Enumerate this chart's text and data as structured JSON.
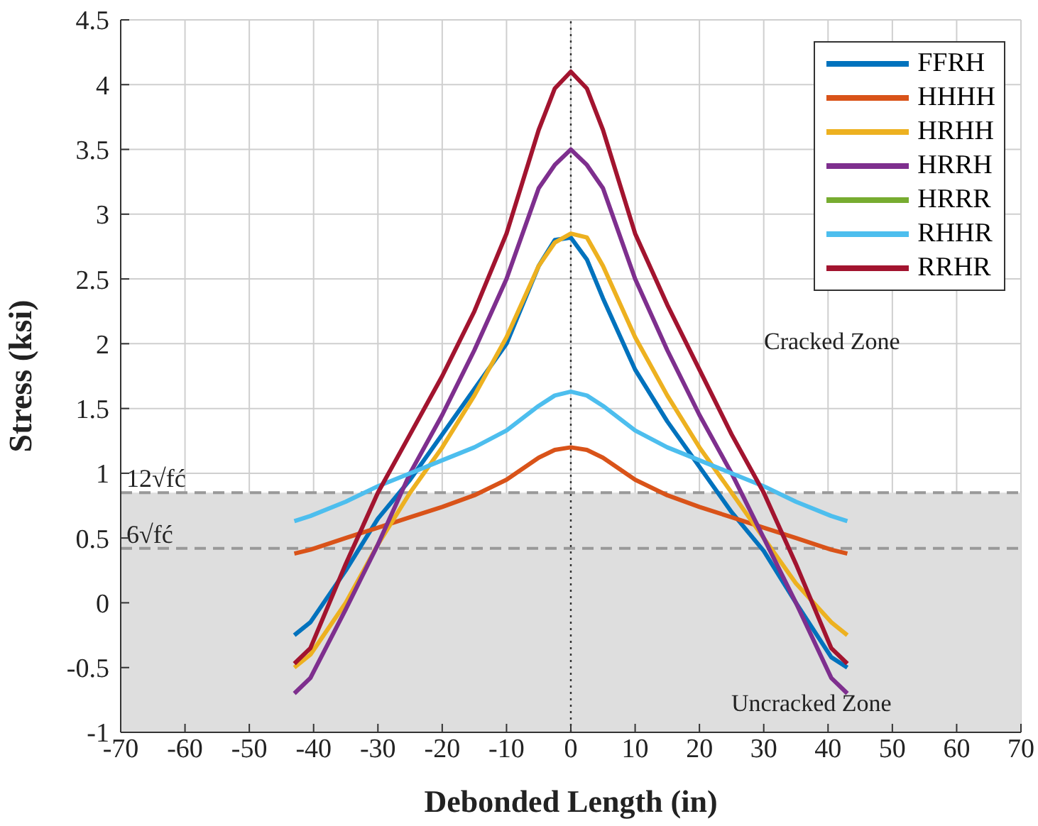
{
  "chart_data": {
    "type": "line",
    "xlabel": "Debonded Length (in)",
    "ylabel": "Stress (ksi)",
    "x": [
      -43,
      -40.5,
      -35,
      -30,
      -25,
      -20,
      -15,
      -10,
      -5,
      -2.5,
      0,
      2.5,
      5,
      10,
      15,
      20,
      25,
      30,
      35,
      40.5,
      43
    ],
    "series": [
      {
        "name": "FFRH",
        "color": "#0072bd",
        "values": [
          -0.25,
          -0.15,
          0.25,
          0.65,
          0.95,
          1.3,
          1.65,
          2.0,
          2.6,
          2.8,
          2.82,
          2.65,
          2.35,
          1.8,
          1.4,
          1.05,
          0.7,
          0.4,
          0.0,
          -0.42,
          -0.5
        ]
      },
      {
        "name": "HHHH",
        "color": "#d95319",
        "values": [
          0.38,
          0.41,
          0.5,
          0.58,
          0.66,
          0.74,
          0.83,
          0.95,
          1.12,
          1.18,
          1.2,
          1.18,
          1.12,
          0.95,
          0.83,
          0.74,
          0.66,
          0.58,
          0.5,
          0.41,
          0.38
        ]
      },
      {
        "name": "HRHH",
        "color": "#edb120",
        "values": [
          -0.5,
          -0.4,
          0.0,
          0.45,
          0.85,
          1.2,
          1.6,
          2.05,
          2.6,
          2.78,
          2.85,
          2.82,
          2.6,
          2.05,
          1.6,
          1.2,
          0.85,
          0.5,
          0.15,
          -0.15,
          -0.25
        ]
      },
      {
        "name": "HRRH",
        "color": "#7e2f8e",
        "values": [
          -0.7,
          -0.58,
          -0.05,
          0.45,
          1.0,
          1.45,
          1.95,
          2.5,
          3.2,
          3.38,
          3.5,
          3.38,
          3.2,
          2.5,
          1.95,
          1.45,
          1.0,
          0.5,
          0.0,
          -0.58,
          -0.7
        ]
      },
      {
        "name": "HRRR",
        "color": "#77ac30",
        "values": [
          null,
          null,
          null,
          null,
          null,
          null,
          null,
          null,
          null,
          null,
          null,
          null,
          null,
          null,
          null,
          null,
          null,
          null,
          null,
          null,
          null
        ]
      },
      {
        "name": "RHHR",
        "color": "#4dbeee",
        "values": [
          0.63,
          0.67,
          0.78,
          0.9,
          1.0,
          1.1,
          1.2,
          1.33,
          1.52,
          1.6,
          1.63,
          1.6,
          1.52,
          1.33,
          1.2,
          1.1,
          1.0,
          0.9,
          0.78,
          0.67,
          0.63
        ]
      },
      {
        "name": "RRHR",
        "color": "#a2142f",
        "values": [
          -0.47,
          -0.35,
          0.3,
          0.85,
          1.3,
          1.75,
          2.25,
          2.85,
          3.65,
          3.97,
          4.1,
          3.97,
          3.65,
          2.85,
          2.3,
          1.8,
          1.3,
          0.85,
          0.3,
          -0.35,
          -0.47
        ]
      }
    ],
    "xlim": [
      -70,
      70
    ],
    "xticks": [
      -70,
      -60,
      -50,
      -40,
      -30,
      -20,
      -10,
      0,
      10,
      20,
      30,
      40,
      50,
      60,
      70
    ],
    "ylim": [
      -1,
      4.5
    ],
    "yticks": [
      -1,
      -0.5,
      0,
      0.5,
      1,
      1.5,
      2,
      2.5,
      3,
      3.5,
      4,
      4.5
    ],
    "ref_lines": [
      {
        "axis": "y",
        "value": 0.85,
        "label": "12√fć",
        "color": "#999999",
        "line_style": "dashed"
      },
      {
        "axis": "y",
        "value": 0.42,
        "label": "6√fć",
        "color": "#999999",
        "line_style": "dashed"
      },
      {
        "axis": "x",
        "value": 0,
        "color": "#333333",
        "line_style": "dotted"
      }
    ],
    "bands": [
      {
        "axis": "y",
        "from": -1,
        "to": 0.85,
        "color": "#dedede"
      }
    ],
    "annotations": [
      "Cracked Zone",
      "Uncracked Zone"
    ],
    "grid": true,
    "legend": "top right",
    "marker": "none",
    "line_style": "solid"
  }
}
